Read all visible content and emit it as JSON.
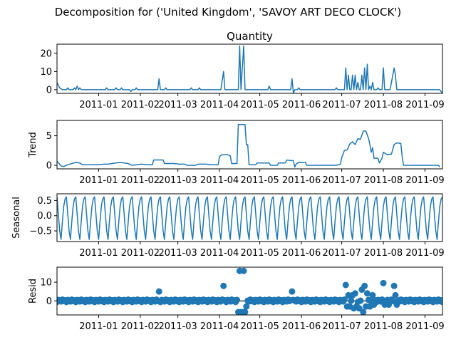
{
  "figure": {
    "suptitle": "Decomposition for ('United Kingdom', 'SAVOY ART DECO CLOCK')",
    "line_color": "#1f77b4"
  },
  "chart_data": [
    {
      "name": "quantity",
      "type": "line",
      "title": "Quantity",
      "ylabel": "",
      "x_range": [
        "2010-12-01",
        "2011-09-14"
      ],
      "ylim": [
        -2,
        25
      ],
      "yticks": [
        0,
        10,
        20
      ],
      "xticks": [
        "2011-01",
        "2011-02",
        "2011-03",
        "2011-04",
        "2011-05",
        "2011-06",
        "2011-07",
        "2011-08",
        "2011-09"
      ],
      "points": [
        [
          "2010-12-01",
          4
        ],
        [
          "2010-12-03",
          1
        ],
        [
          "2010-12-05",
          0
        ],
        [
          "2010-12-08",
          0
        ],
        [
          "2010-12-09",
          1
        ],
        [
          "2010-12-10",
          0
        ],
        [
          "2010-12-13",
          0
        ],
        [
          "2010-12-14",
          1
        ],
        [
          "2010-12-15",
          0
        ],
        [
          "2010-12-16",
          2
        ],
        [
          "2010-12-17",
          0
        ],
        [
          "2010-12-18",
          1
        ],
        [
          "2010-12-19",
          0
        ],
        [
          "2011-01-06",
          0
        ],
        [
          "2011-01-07",
          1
        ],
        [
          "2011-01-08",
          0
        ],
        [
          "2011-01-13",
          0
        ],
        [
          "2011-01-14",
          1
        ],
        [
          "2011-01-15",
          0
        ],
        [
          "2011-01-17",
          0
        ],
        [
          "2011-01-18",
          1
        ],
        [
          "2011-01-19",
          0
        ],
        [
          "2011-01-24",
          0
        ],
        [
          "2011-01-25",
          -1
        ],
        [
          "2011-01-26",
          0
        ],
        [
          "2011-01-28",
          0
        ],
        [
          "2011-01-29",
          1
        ],
        [
          "2011-01-30",
          0
        ],
        [
          "2011-02-14",
          0
        ],
        [
          "2011-02-15",
          6
        ],
        [
          "2011-02-16",
          0
        ],
        [
          "2011-02-19",
          0
        ],
        [
          "2011-02-20",
          1
        ],
        [
          "2011-02-21",
          0
        ],
        [
          "2011-03-10",
          0
        ],
        [
          "2011-03-11",
          1
        ],
        [
          "2011-03-12",
          0
        ],
        [
          "2011-03-16",
          0
        ],
        [
          "2011-03-17",
          1
        ],
        [
          "2011-03-18",
          0
        ],
        [
          "2011-04-02",
          0
        ],
        [
          "2011-04-04",
          10
        ],
        [
          "2011-04-05",
          0
        ],
        [
          "2011-04-15",
          0
        ],
        [
          "2011-04-16",
          24
        ],
        [
          "2011-04-17",
          0
        ],
        [
          "2011-04-19",
          24
        ],
        [
          "2011-04-20",
          0
        ],
        [
          "2011-05-07",
          0
        ],
        [
          "2011-05-08",
          2
        ],
        [
          "2011-05-09",
          0
        ],
        [
          "2011-05-24",
          0
        ],
        [
          "2011-05-25",
          6
        ],
        [
          "2011-05-26",
          -2
        ],
        [
          "2011-05-27",
          0
        ],
        [
          "2011-05-29",
          0
        ],
        [
          "2011-05-30",
          1
        ],
        [
          "2011-05-31",
          0
        ],
        [
          "2011-06-26",
          0
        ],
        [
          "2011-06-27",
          1
        ],
        [
          "2011-06-28",
          0
        ],
        [
          "2011-07-03",
          0
        ],
        [
          "2011-07-04",
          12
        ],
        [
          "2011-07-05",
          0
        ],
        [
          "2011-07-06",
          8
        ],
        [
          "2011-07-07",
          0
        ],
        [
          "2011-07-08",
          0
        ],
        [
          "2011-07-09",
          8
        ],
        [
          "2011-07-10",
          0
        ],
        [
          "2011-07-11",
          8
        ],
        [
          "2011-07-12",
          0
        ],
        [
          "2011-07-13",
          4
        ],
        [
          "2011-07-14",
          0
        ],
        [
          "2011-07-15",
          0
        ],
        [
          "2011-07-16",
          8
        ],
        [
          "2011-07-17",
          0
        ],
        [
          "2011-07-18",
          12
        ],
        [
          "2011-07-19",
          0
        ],
        [
          "2011-07-20",
          14
        ],
        [
          "2011-07-21",
          0
        ],
        [
          "2011-07-22",
          2
        ],
        [
          "2011-07-23",
          0
        ],
        [
          "2011-07-24",
          4
        ],
        [
          "2011-07-25",
          0
        ],
        [
          "2011-07-27",
          0
        ],
        [
          "2011-07-28",
          1
        ],
        [
          "2011-07-29",
          0
        ],
        [
          "2011-07-31",
          0
        ],
        [
          "2011-08-01",
          12
        ],
        [
          "2011-08-02",
          0
        ],
        [
          "2011-08-06",
          0
        ],
        [
          "2011-08-09",
          12
        ],
        [
          "2011-08-10",
          8
        ],
        [
          "2011-08-11",
          0
        ],
        [
          "2011-09-12",
          0
        ],
        [
          "2011-09-14",
          -2
        ]
      ]
    },
    {
      "name": "trend",
      "type": "line",
      "title": "",
      "ylabel": "Trend",
      "x_range": [
        "2010-12-01",
        "2011-09-14"
      ],
      "ylim": [
        -0.6,
        7.6
      ],
      "yticks": [
        0,
        5
      ],
      "xticks": [
        "2011-01",
        "2011-02",
        "2011-03",
        "2011-04",
        "2011-05",
        "2011-06",
        "2011-07",
        "2011-08",
        "2011-09"
      ],
      "points": [
        [
          "2010-12-01",
          0.7
        ],
        [
          "2010-12-04",
          -0.1
        ],
        [
          "2010-12-06",
          -0.2
        ],
        [
          "2010-12-09",
          0.1
        ],
        [
          "2010-12-12",
          0.3
        ],
        [
          "2010-12-15",
          0.5
        ],
        [
          "2010-12-18",
          0.4
        ],
        [
          "2010-12-20",
          0.1
        ],
        [
          "2011-01-01",
          0.1
        ],
        [
          "2011-01-05",
          0.2
        ],
        [
          "2011-01-08",
          0.2
        ],
        [
          "2011-01-11",
          0.3
        ],
        [
          "2011-01-14",
          0.4
        ],
        [
          "2011-01-17",
          0.5
        ],
        [
          "2011-01-20",
          0.4
        ],
        [
          "2011-01-23",
          0.3
        ],
        [
          "2011-01-26",
          0.0
        ],
        [
          "2011-01-29",
          0.1
        ],
        [
          "2011-02-02",
          0.2
        ],
        [
          "2011-02-06",
          0.1
        ],
        [
          "2011-02-10",
          0.1
        ],
        [
          "2011-02-11",
          0.9
        ],
        [
          "2011-02-18",
          0.9
        ],
        [
          "2011-02-19",
          0.3
        ],
        [
          "2011-02-26",
          0.3
        ],
        [
          "2011-03-02",
          0.2
        ],
        [
          "2011-03-06",
          0.2
        ],
        [
          "2011-03-08",
          0.0
        ],
        [
          "2011-03-14",
          0.0
        ],
        [
          "2011-03-16",
          0.2
        ],
        [
          "2011-03-22",
          0.2
        ],
        [
          "2011-03-26",
          0.1
        ],
        [
          "2011-03-31",
          0.1
        ],
        [
          "2011-04-01",
          1.5
        ],
        [
          "2011-04-03",
          1.8
        ],
        [
          "2011-04-07",
          1.8
        ],
        [
          "2011-04-09",
          1.6
        ],
        [
          "2011-04-10",
          0.3
        ],
        [
          "2011-04-14",
          0.3
        ],
        [
          "2011-04-15",
          6.9
        ],
        [
          "2011-04-20",
          6.9
        ],
        [
          "2011-04-21",
          3.5
        ],
        [
          "2011-04-22",
          3.5
        ],
        [
          "2011-04-23",
          0.1
        ],
        [
          "2011-04-28",
          0.1
        ],
        [
          "2011-04-29",
          0.4
        ],
        [
          "2011-05-08",
          0.4
        ],
        [
          "2011-05-09",
          0.0
        ],
        [
          "2011-05-14",
          0.0
        ],
        [
          "2011-05-15",
          0.4
        ],
        [
          "2011-05-20",
          0.4
        ],
        [
          "2011-05-21",
          0.9
        ],
        [
          "2011-05-24",
          0.8
        ],
        [
          "2011-05-26",
          0.8
        ],
        [
          "2011-05-27",
          -0.3
        ],
        [
          "2011-05-28",
          0.2
        ],
        [
          "2011-05-30",
          0.5
        ],
        [
          "2011-06-04",
          0.5
        ],
        [
          "2011-06-05",
          0.0
        ],
        [
          "2011-06-27",
          0.0
        ],
        [
          "2011-06-30",
          0.2
        ],
        [
          "2011-07-01",
          1.3
        ],
        [
          "2011-07-03",
          2.5
        ],
        [
          "2011-07-05",
          2.6
        ],
        [
          "2011-07-07",
          3.6
        ],
        [
          "2011-07-09",
          4.0
        ],
        [
          "2011-07-11",
          3.5
        ],
        [
          "2011-07-13",
          4.5
        ],
        [
          "2011-07-15",
          4.4
        ],
        [
          "2011-07-17",
          5.8
        ],
        [
          "2011-07-19",
          5.8
        ],
        [
          "2011-07-21",
          4.5
        ],
        [
          "2011-07-22",
          3.5
        ],
        [
          "2011-07-23",
          2.2
        ],
        [
          "2011-07-24",
          3.0
        ],
        [
          "2011-07-25",
          1.2
        ],
        [
          "2011-07-28",
          1.2
        ],
        [
          "2011-07-29",
          0.4
        ],
        [
          "2011-07-31",
          1.2
        ],
        [
          "2011-08-01",
          2.2
        ],
        [
          "2011-08-04",
          1.8
        ],
        [
          "2011-08-07",
          1.9
        ],
        [
          "2011-08-09",
          3.5
        ],
        [
          "2011-08-11",
          3.8
        ],
        [
          "2011-08-14",
          3.7
        ],
        [
          "2011-08-15",
          1.5
        ],
        [
          "2011-08-16",
          0.0
        ],
        [
          "2011-09-11",
          0.0
        ],
        [
          "2011-09-12",
          -0.3
        ]
      ]
    },
    {
      "name": "seasonal",
      "type": "line",
      "title": "",
      "ylabel": "Seasonal",
      "x_range": [
        "2010-12-01",
        "2011-09-14"
      ],
      "ylim": [
        -0.85,
        0.72
      ],
      "yticks": [
        -0.5,
        0.0,
        0.5
      ],
      "ytick_labels": [
        "−0.5",
        "0.0",
        "0.5"
      ],
      "xticks": [
        "2011-01",
        "2011-02",
        "2011-03",
        "2011-04",
        "2011-05",
        "2011-06",
        "2011-07",
        "2011-08",
        "2011-09"
      ],
      "period_days": 7,
      "weekly_pattern": [
        0.62,
        0.05,
        -0.5,
        -0.78,
        -0.2,
        0.3,
        0.55
      ]
    },
    {
      "name": "resid",
      "type": "scatter",
      "title": "",
      "ylabel": "Resid",
      "x_range": [
        "2010-12-01",
        "2011-09-14"
      ],
      "ylim": [
        -7.5,
        18
      ],
      "yticks": [
        0,
        10
      ],
      "zero_line": true,
      "xticks": [
        "2011-01",
        "2011-02",
        "2011-03",
        "2011-04",
        "2011-05",
        "2011-06",
        "2011-07",
        "2011-08",
        "2011-09"
      ],
      "baseline_pattern": [
        -0.6,
        0.5,
        0.1,
        -0.3,
        0.7,
        -0.1,
        0.3
      ],
      "outliers": [
        [
          "2011-02-15",
          5
        ],
        [
          "2011-04-04",
          8
        ],
        [
          "2011-04-15",
          -6
        ],
        [
          "2011-04-16",
          16
        ],
        [
          "2011-04-17",
          -6
        ],
        [
          "2011-04-18",
          -6
        ],
        [
          "2011-04-19",
          16
        ],
        [
          "2011-04-20",
          -6
        ],
        [
          "2011-04-21",
          -3
        ],
        [
          "2011-05-25",
          5
        ],
        [
          "2011-07-04",
          8.5
        ],
        [
          "2011-07-05",
          -3
        ],
        [
          "2011-07-06",
          3
        ],
        [
          "2011-07-07",
          -3
        ],
        [
          "2011-07-09",
          3
        ],
        [
          "2011-07-10",
          -4
        ],
        [
          "2011-07-11",
          4
        ],
        [
          "2011-07-12",
          -3
        ],
        [
          "2011-07-14",
          -4
        ],
        [
          "2011-07-16",
          6
        ],
        [
          "2011-07-17",
          -6
        ],
        [
          "2011-07-18",
          8
        ],
        [
          "2011-07-19",
          -3
        ],
        [
          "2011-07-20",
          4
        ],
        [
          "2011-07-22",
          -3
        ],
        [
          "2011-07-24",
          3
        ],
        [
          "2011-07-25",
          -2
        ],
        [
          "2011-08-01",
          9.5
        ],
        [
          "2011-08-02",
          -2
        ],
        [
          "2011-08-05",
          -2
        ],
        [
          "2011-08-09",
          8
        ],
        [
          "2011-08-10",
          3
        ],
        [
          "2011-08-11",
          -2
        ]
      ]
    }
  ]
}
